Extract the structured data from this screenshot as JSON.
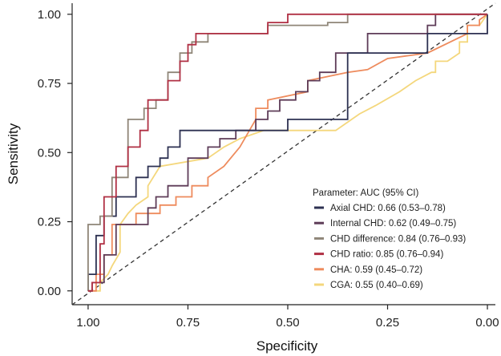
{
  "chart_data": {
    "type": "line",
    "title": "",
    "xlabel": "Specificity",
    "ylabel": "Sensitivity",
    "xlim": [
      1.04,
      -0.02
    ],
    "ylim": [
      -0.05,
      1.04
    ],
    "x_ticks": [
      1.0,
      0.75,
      0.5,
      0.25,
      0.0
    ],
    "x_tick_labels": [
      "1.00",
      "0.75",
      "0.50",
      "0.25",
      "0.00"
    ],
    "y_ticks": [
      0.0,
      0.25,
      0.5,
      0.75,
      1.0
    ],
    "y_tick_labels": [
      "0.00",
      "0.25",
      "0.50",
      "0.75",
      "1.00"
    ],
    "grid": false,
    "legend": {
      "title": "Parameter: AUC (95% CI)",
      "position": "bottom-right",
      "entries": [
        "Axial CHD: 0.66 (0.53–0.78)",
        "Internal CHD: 0.62 (0.49–0.75)",
        "CHD difference: 0.84 (0.76–0.93)",
        "CHD ratio: 0.85 (0.76–0.94)",
        "CHA: 0.59 (0.45–0.72)",
        "CGA: 0.55 (0.40–0.69)"
      ]
    },
    "reference_line": {
      "from": [
        1.0,
        0.0
      ],
      "to": [
        0.0,
        1.0
      ],
      "style": "dashed",
      "color": "#333333"
    },
    "series": [
      {
        "name": "Axial CHD",
        "color": "#2d3152",
        "x": [
          1.0,
          1.0,
          0.98,
          0.98,
          0.96,
          0.96,
          0.93,
          0.93,
          0.88,
          0.88,
          0.85,
          0.85,
          0.82,
          0.82,
          0.8,
          0.8,
          0.77,
          0.77,
          0.5,
          0.5,
          0.35,
          0.35,
          0.15,
          0.15,
          0.0,
          0.0
        ],
        "y": [
          0.0,
          0.06,
          0.06,
          0.2,
          0.2,
          0.27,
          0.27,
          0.34,
          0.34,
          0.41,
          0.41,
          0.45,
          0.45,
          0.48,
          0.48,
          0.52,
          0.52,
          0.58,
          0.58,
          0.62,
          0.62,
          0.86,
          0.86,
          0.93,
          0.93,
          1.0
        ]
      },
      {
        "name": "Internal CHD",
        "color": "#5e3c58",
        "x": [
          1.0,
          0.99,
          0.99,
          0.96,
          0.96,
          0.93,
          0.93,
          0.85,
          0.85,
          0.83,
          0.83,
          0.8,
          0.8,
          0.75,
          0.75,
          0.7,
          0.7,
          0.67,
          0.67,
          0.63,
          0.63,
          0.58,
          0.58,
          0.55,
          0.55,
          0.52,
          0.52,
          0.48,
          0.48,
          0.45,
          0.45,
          0.42,
          0.42,
          0.38,
          0.38,
          0.3,
          0.3,
          0.15,
          0.15,
          0.13,
          0.13,
          0.0
        ],
        "y": [
          0.0,
          0.0,
          0.03,
          0.03,
          0.13,
          0.13,
          0.24,
          0.24,
          0.3,
          0.3,
          0.34,
          0.34,
          0.38,
          0.38,
          0.48,
          0.48,
          0.52,
          0.52,
          0.55,
          0.55,
          0.58,
          0.58,
          0.62,
          0.62,
          0.65,
          0.65,
          0.69,
          0.69,
          0.72,
          0.72,
          0.76,
          0.76,
          0.79,
          0.79,
          0.86,
          0.86,
          0.93,
          0.93,
          0.96,
          0.96,
          1.0,
          1.0
        ]
      },
      {
        "name": "CHD difference",
        "color": "#8f8678",
        "x": [
          1.0,
          1.0,
          0.97,
          0.97,
          0.94,
          0.94,
          0.9,
          0.9,
          0.86,
          0.86,
          0.83,
          0.83,
          0.8,
          0.8,
          0.77,
          0.77,
          0.74,
          0.74,
          0.7,
          0.7,
          0.55,
          0.55,
          0.4,
          0.4,
          0.35,
          0.35,
          0.0
        ],
        "y": [
          0.0,
          0.24,
          0.24,
          0.27,
          0.27,
          0.41,
          0.41,
          0.62,
          0.62,
          0.66,
          0.66,
          0.69,
          0.69,
          0.79,
          0.79,
          0.86,
          0.86,
          0.9,
          0.9,
          0.93,
          0.93,
          0.96,
          0.96,
          0.97,
          0.97,
          1.0,
          1.0
        ]
      },
      {
        "name": "CHD ratio",
        "color": "#b03044",
        "x": [
          1.0,
          0.99,
          0.99,
          0.97,
          0.97,
          0.96,
          0.96,
          0.93,
          0.93,
          0.9,
          0.9,
          0.87,
          0.87,
          0.85,
          0.85,
          0.8,
          0.8,
          0.77,
          0.77,
          0.75,
          0.75,
          0.73,
          0.73,
          0.7,
          0.7,
          0.55,
          0.55,
          0.5,
          0.5,
          0.0
        ],
        "y": [
          0.0,
          0.0,
          0.03,
          0.03,
          0.17,
          0.17,
          0.34,
          0.34,
          0.45,
          0.45,
          0.52,
          0.52,
          0.58,
          0.58,
          0.69,
          0.69,
          0.76,
          0.76,
          0.83,
          0.83,
          0.89,
          0.89,
          0.93,
          0.93,
          0.93,
          0.93,
          0.97,
          0.97,
          1.0,
          1.0
        ]
      },
      {
        "name": "CHA",
        "color": "#ee8b5d",
        "x": [
          1.0,
          0.98,
          0.98,
          0.96,
          0.96,
          0.94,
          0.94,
          0.88,
          0.88,
          0.82,
          0.82,
          0.78,
          0.78,
          0.74,
          0.74,
          0.7,
          0.7,
          0.66,
          0.62,
          0.58,
          0.58,
          0.55,
          0.55,
          0.45,
          0.45,
          0.35,
          0.3,
          0.25,
          0.15,
          0.05,
          0.05,
          0.02,
          0.02,
          0.0
        ],
        "y": [
          0.0,
          0.0,
          0.06,
          0.06,
          0.13,
          0.13,
          0.24,
          0.24,
          0.28,
          0.28,
          0.31,
          0.31,
          0.34,
          0.34,
          0.38,
          0.38,
          0.41,
          0.45,
          0.52,
          0.62,
          0.66,
          0.66,
          0.69,
          0.72,
          0.76,
          0.79,
          0.8,
          0.84,
          0.86,
          0.93,
          0.96,
          0.96,
          0.98,
          1.0
        ]
      },
      {
        "name": "CGA",
        "color": "#f4d77c",
        "x": [
          1.0,
          0.97,
          0.97,
          0.95,
          0.94,
          0.92,
          0.92,
          0.9,
          0.88,
          0.85,
          0.85,
          0.82,
          0.82,
          0.7,
          0.66,
          0.62,
          0.56,
          0.53,
          0.49,
          0.46,
          0.38,
          0.34,
          0.32,
          0.28,
          0.22,
          0.18,
          0.14,
          0.13,
          0.13,
          0.1,
          0.07,
          0.07,
          0.05,
          0.05,
          0.02,
          0.0
        ],
        "y": [
          0.0,
          0.0,
          0.03,
          0.06,
          0.09,
          0.14,
          0.24,
          0.28,
          0.31,
          0.34,
          0.38,
          0.45,
          0.45,
          0.48,
          0.52,
          0.55,
          0.58,
          0.58,
          0.58,
          0.58,
          0.58,
          0.62,
          0.64,
          0.67,
          0.72,
          0.76,
          0.79,
          0.79,
          0.83,
          0.83,
          0.86,
          0.9,
          0.9,
          0.96,
          0.96,
          1.0
        ]
      }
    ]
  }
}
